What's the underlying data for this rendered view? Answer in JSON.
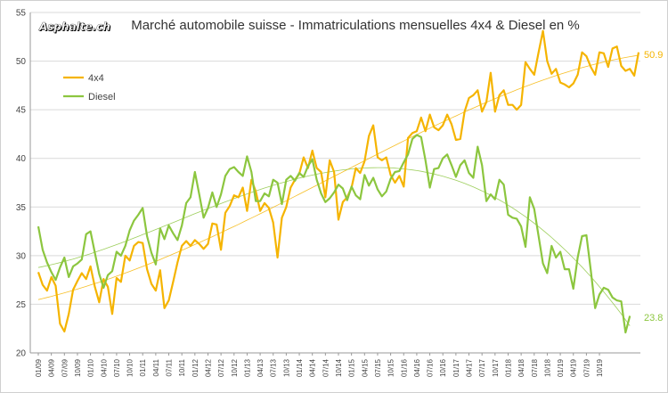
{
  "logo": {
    "text": "Asphalte.ch"
  },
  "colors": {
    "series_4x4": "#f5b400",
    "series_diesel": "#8cc63f",
    "grid": "#d9d9d9",
    "axis": "#999999"
  },
  "chart_data": {
    "type": "line",
    "title": "Marché automobile suisse - Immatriculations mensuelles 4x4 & Diesel en %",
    "xlabel": "",
    "ylabel": "",
    "ylim": [
      20,
      55
    ],
    "yticks": [
      20,
      25,
      30,
      35,
      40,
      45,
      50,
      55
    ],
    "legend_position": "top-left",
    "grid": true,
    "x_start": "2009-01",
    "xtick_labels": [
      "01/09",
      "04/09",
      "07/09",
      "10/09",
      "01/10",
      "04/10",
      "07/10",
      "10/10",
      "01/11",
      "04/11",
      "07/11",
      "10/11",
      "01/12",
      "04/12",
      "07/12",
      "10/12",
      "01/13",
      "04/13",
      "07/13",
      "10/13",
      "01/14",
      "04/14",
      "07/14",
      "10/14",
      "01/15",
      "04/15",
      "07/15",
      "10/15",
      "01/16",
      "04/16",
      "07/16",
      "10/16",
      "01/17",
      "04/17",
      "07/17",
      "10/17",
      "01/18",
      "04/18",
      "07/18",
      "10/18",
      "01/19",
      "04/19",
      "07/19",
      "10/19"
    ],
    "series": [
      {
        "name": "4x4",
        "end_label": "50.9",
        "values": [
          28.3,
          27.0,
          26.4,
          27.8,
          26.9,
          23.0,
          22.2,
          24.0,
          26.5,
          27.4,
          28.2,
          27.6,
          28.9,
          26.8,
          25.2,
          27.6,
          26.8,
          24.0,
          27.7,
          27.3,
          30.0,
          29.5,
          31.0,
          31.4,
          31.3,
          28.6,
          27.1,
          26.4,
          28.5,
          24.6,
          25.4,
          27.3,
          29.3,
          31.0,
          31.5,
          31.0,
          31.6,
          31.2,
          30.7,
          31.2,
          33.3,
          33.2,
          30.6,
          34.4,
          35.1,
          36.2,
          36.0,
          37.0,
          34.6,
          37.8,
          36.6,
          34.6,
          35.4,
          34.9,
          33.4,
          29.8,
          33.9,
          35.0,
          37.0,
          37.8,
          38.4,
          40.1,
          39.0,
          40.8,
          39.0,
          38.6,
          36.0,
          39.8,
          38.6,
          33.7,
          35.5,
          36.0,
          37.0,
          39.0,
          38.5,
          39.7,
          42.3,
          43.4,
          40.1,
          39.8,
          40.1,
          38.3,
          37.5,
          38.2,
          37.1,
          42.1,
          42.6,
          42.8,
          44.2,
          42.8,
          44.5,
          43.2,
          42.9,
          43.4,
          44.5,
          43.5,
          41.9,
          42.0,
          44.8,
          46.2,
          46.5,
          47.0,
          44.8,
          45.8,
          48.8,
          44.8,
          46.5,
          47.0,
          45.5,
          45.5,
          45.0,
          45.5,
          49.9,
          49.2,
          48.6,
          50.9,
          53.1,
          50.0,
          48.7,
          49.2,
          47.8,
          47.6,
          47.3,
          47.7,
          48.6,
          50.9,
          50.5,
          49.4,
          48.6,
          50.9,
          50.8,
          49.4,
          51.3,
          51.5,
          49.5,
          49.0,
          49.2,
          48.5,
          50.9
        ]
      },
      {
        "name": "Diesel",
        "end_label": "23.8",
        "values": [
          33.0,
          30.6,
          29.3,
          28.3,
          27.5,
          28.8,
          29.8,
          27.8,
          28.9,
          29.2,
          29.6,
          32.2,
          32.5,
          30.3,
          28.1,
          26.7,
          28.0,
          28.4,
          30.4,
          30.0,
          31.0,
          32.6,
          33.6,
          34.2,
          34.9,
          32.0,
          30.3,
          29.1,
          32.8,
          31.7,
          33.1,
          32.3,
          31.6,
          33.1,
          35.4,
          36.0,
          38.6,
          36.3,
          33.9,
          34.9,
          36.5,
          35.0,
          36.3,
          38.2,
          38.9,
          39.1,
          38.6,
          38.2,
          40.2,
          38.6,
          35.6,
          35.6,
          36.4,
          36.1,
          37.8,
          37.5,
          35.3,
          37.8,
          38.2,
          37.7,
          38.5,
          38.1,
          39.2,
          39.9,
          37.8,
          36.4,
          35.5,
          35.9,
          36.5,
          37.3,
          36.9,
          35.7,
          37.1,
          36.2,
          35.8,
          38.3,
          37.2,
          38.0,
          36.8,
          36.1,
          36.6,
          37.9,
          38.6,
          38.7,
          39.6,
          40.4,
          42.0,
          42.4,
          42.2,
          39.8,
          37.0,
          38.9,
          39.0,
          40.0,
          40.4,
          39.3,
          38.1,
          39.3,
          39.8,
          38.5,
          38.0,
          41.2,
          39.3,
          35.6,
          36.3,
          35.8,
          37.8,
          37.3,
          34.2,
          33.9,
          33.8,
          33.0,
          30.9,
          36.0,
          34.8,
          32.0,
          29.2,
          28.2,
          31.0,
          29.8,
          30.4,
          28.6,
          28.6,
          26.6,
          29.8,
          32.0,
          32.1,
          28.5,
          24.6,
          26.0,
          26.7,
          26.5,
          25.7,
          25.4,
          25.3,
          22.1,
          23.8
        ]
      }
    ]
  }
}
